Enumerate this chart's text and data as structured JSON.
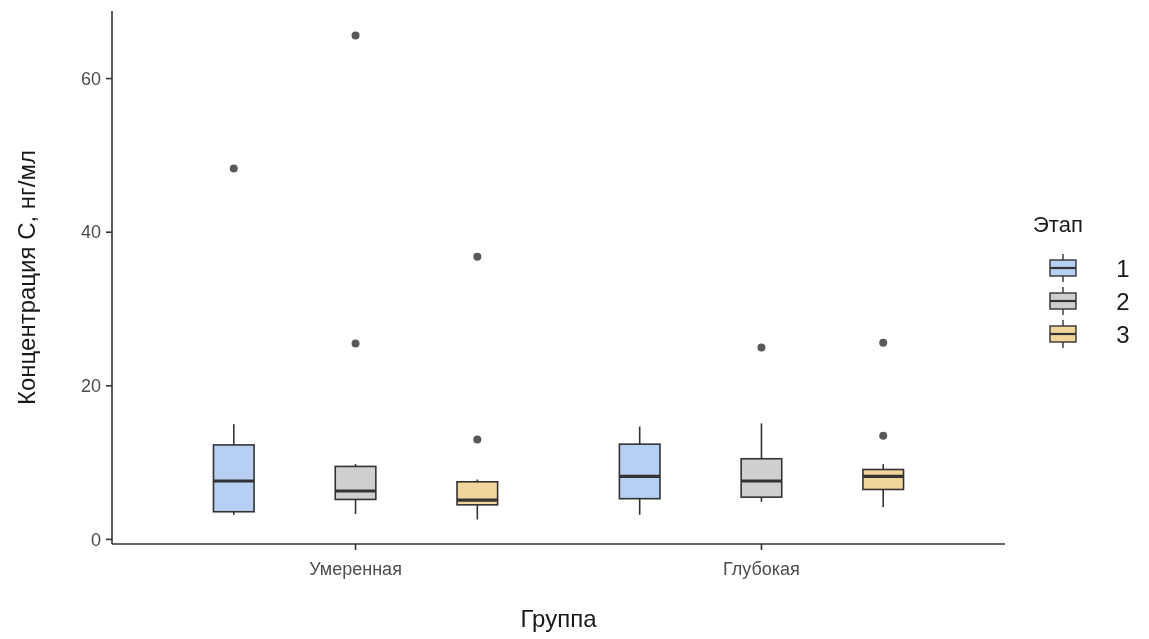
{
  "chart_data": {
    "type": "box",
    "xlabel": "Группа",
    "ylabel": "Концентрация С, нг/мл",
    "legend_title": "Этап",
    "legend": "right",
    "grid": false,
    "categories": [
      "Умеренная",
      "Глубокая"
    ],
    "ylim": [
      -0.6,
      68.8
    ],
    "yticks": [
      0,
      20,
      40,
      60
    ],
    "series": [
      {
        "name": "1",
        "color": "#b6cff3",
        "boxes": [
          {
            "low": 3.2,
            "q1": 3.6,
            "median": 7.6,
            "q3": 12.3,
            "high": 15.0,
            "outliers": [
              48.3
            ]
          },
          {
            "low": 3.2,
            "q1": 5.3,
            "median": 8.2,
            "q3": 12.4,
            "high": 14.7
          }
        ]
      },
      {
        "name": "2",
        "color": "#cfcfcf",
        "boxes": [
          {
            "low": 3.3,
            "q1": 5.2,
            "median": 6.3,
            "q3": 9.5,
            "high": 9.8,
            "outliers": [
              25.5,
              65.6
            ]
          },
          {
            "low": 4.9,
            "q1": 5.5,
            "median": 7.6,
            "q3": 10.5,
            "high": 15.1,
            "outliers": [
              25.0
            ]
          }
        ]
      },
      {
        "name": "3",
        "color": "#f2d59b",
        "boxes": [
          {
            "low": 2.6,
            "q1": 4.5,
            "median": 5.1,
            "q3": 7.5,
            "high": 7.8,
            "outliers": [
              13.0,
              36.8
            ]
          },
          {
            "low": 4.2,
            "q1": 6.5,
            "median": 8.2,
            "q3": 9.1,
            "high": 9.8,
            "outliers": [
              13.5,
              25.6
            ]
          }
        ]
      }
    ]
  }
}
